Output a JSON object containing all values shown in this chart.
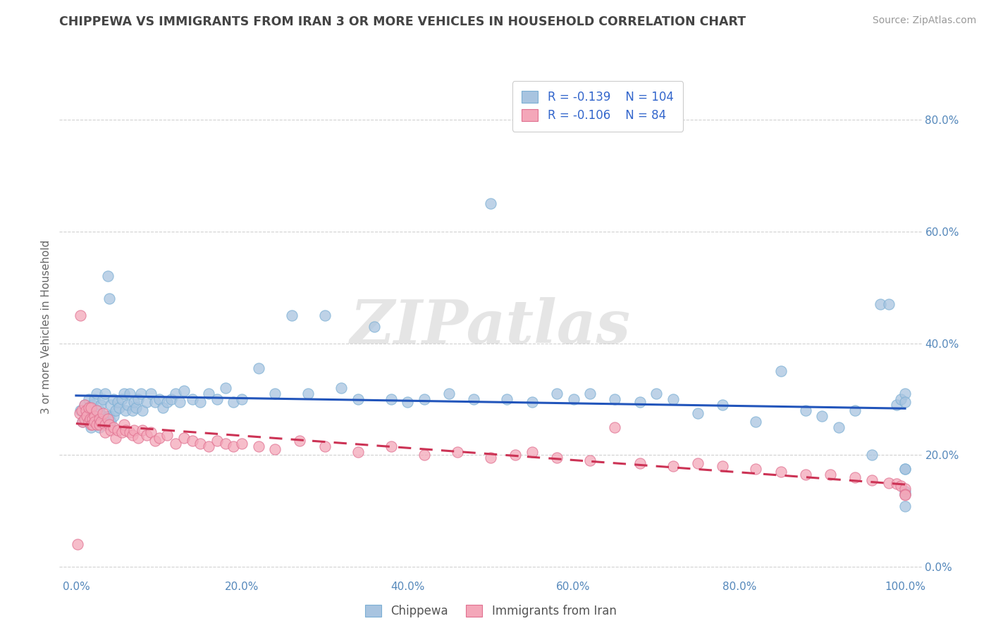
{
  "title": "CHIPPEWA VS IMMIGRANTS FROM IRAN 3 OR MORE VEHICLES IN HOUSEHOLD CORRELATION CHART",
  "source": "Source: ZipAtlas.com",
  "ylabel": "3 or more Vehicles in Household",
  "watermark": "ZIPatlas",
  "legend_blue_R": -0.139,
  "legend_blue_N": 104,
  "legend_pink_R": -0.106,
  "legend_pink_N": 84,
  "xlim": [
    -0.02,
    1.02
  ],
  "ylim": [
    -0.02,
    0.88
  ],
  "x_ticks": [
    0.0,
    0.2,
    0.4,
    0.6,
    0.8,
    1.0
  ],
  "x_tick_labels": [
    "0.0%",
    "20.0%",
    "40.0%",
    "60.0%",
    "80.0%",
    "100.0%"
  ],
  "y_ticks": [
    0.0,
    0.2,
    0.4,
    0.6,
    0.8
  ],
  "y_tick_labels": [
    "0.0%",
    "20.0%",
    "40.0%",
    "60.0%",
    "80.0%"
  ],
  "blue_color": "#a8c4e0",
  "blue_edge_color": "#7bafd4",
  "pink_color": "#f4a7b9",
  "pink_edge_color": "#e07090",
  "trendline_blue": "#2255bb",
  "trendline_pink": "#cc3355",
  "grid_color": "#cccccc",
  "background_color": "#ffffff",
  "title_color": "#444444",
  "source_color": "#999999",
  "legend_text_color": "#3366cc",
  "legend_N_color": "#3366cc",
  "blue_scatter_x": [
    0.005,
    0.008,
    0.01,
    0.012,
    0.015,
    0.015,
    0.018,
    0.018,
    0.02,
    0.02,
    0.022,
    0.022,
    0.025,
    0.025,
    0.028,
    0.028,
    0.03,
    0.03,
    0.032,
    0.032,
    0.035,
    0.035,
    0.038,
    0.038,
    0.04,
    0.04,
    0.042,
    0.042,
    0.045,
    0.045,
    0.048,
    0.05,
    0.052,
    0.055,
    0.058,
    0.06,
    0.062,
    0.065,
    0.068,
    0.07,
    0.072,
    0.075,
    0.078,
    0.08,
    0.085,
    0.09,
    0.095,
    0.1,
    0.105,
    0.11,
    0.115,
    0.12,
    0.125,
    0.13,
    0.14,
    0.15,
    0.16,
    0.17,
    0.18,
    0.19,
    0.2,
    0.22,
    0.24,
    0.26,
    0.28,
    0.3,
    0.32,
    0.34,
    0.36,
    0.38,
    0.4,
    0.42,
    0.45,
    0.48,
    0.5,
    0.52,
    0.55,
    0.58,
    0.6,
    0.62,
    0.65,
    0.68,
    0.7,
    0.72,
    0.75,
    0.78,
    0.82,
    0.85,
    0.88,
    0.9,
    0.92,
    0.94,
    0.96,
    0.97,
    0.98,
    0.99,
    0.995,
    1.0,
    1.0,
    1.0,
    1.0,
    1.0,
    1.0,
    1.0
  ],
  "blue_scatter_y": [
    0.28,
    0.26,
    0.29,
    0.27,
    0.3,
    0.26,
    0.28,
    0.25,
    0.29,
    0.26,
    0.3,
    0.27,
    0.31,
    0.26,
    0.28,
    0.25,
    0.29,
    0.26,
    0.3,
    0.27,
    0.31,
    0.26,
    0.52,
    0.27,
    0.48,
    0.27,
    0.29,
    0.26,
    0.3,
    0.27,
    0.28,
    0.295,
    0.285,
    0.3,
    0.31,
    0.28,
    0.29,
    0.31,
    0.28,
    0.295,
    0.285,
    0.3,
    0.31,
    0.28,
    0.295,
    0.31,
    0.295,
    0.3,
    0.285,
    0.295,
    0.3,
    0.31,
    0.295,
    0.315,
    0.3,
    0.295,
    0.31,
    0.3,
    0.32,
    0.295,
    0.3,
    0.355,
    0.31,
    0.45,
    0.31,
    0.45,
    0.32,
    0.3,
    0.43,
    0.3,
    0.295,
    0.3,
    0.31,
    0.3,
    0.65,
    0.3,
    0.295,
    0.31,
    0.3,
    0.31,
    0.3,
    0.295,
    0.31,
    0.3,
    0.275,
    0.29,
    0.26,
    0.35,
    0.28,
    0.27,
    0.25,
    0.28,
    0.2,
    0.47,
    0.47,
    0.29,
    0.3,
    0.31,
    0.175,
    0.135,
    0.13,
    0.108,
    0.175,
    0.295
  ],
  "pink_scatter_x": [
    0.002,
    0.004,
    0.005,
    0.007,
    0.008,
    0.01,
    0.01,
    0.012,
    0.013,
    0.015,
    0.015,
    0.017,
    0.018,
    0.018,
    0.02,
    0.02,
    0.022,
    0.022,
    0.025,
    0.025,
    0.028,
    0.028,
    0.03,
    0.032,
    0.035,
    0.035,
    0.038,
    0.04,
    0.042,
    0.045,
    0.048,
    0.05,
    0.055,
    0.058,
    0.06,
    0.065,
    0.068,
    0.07,
    0.075,
    0.08,
    0.085,
    0.09,
    0.095,
    0.1,
    0.11,
    0.12,
    0.13,
    0.14,
    0.15,
    0.16,
    0.17,
    0.18,
    0.19,
    0.2,
    0.22,
    0.24,
    0.27,
    0.3,
    0.34,
    0.38,
    0.42,
    0.46,
    0.5,
    0.53,
    0.55,
    0.58,
    0.62,
    0.65,
    0.68,
    0.72,
    0.75,
    0.78,
    0.82,
    0.85,
    0.88,
    0.91,
    0.94,
    0.96,
    0.98,
    0.99,
    0.995,
    1.0,
    1.0,
    1.0
  ],
  "pink_scatter_y": [
    0.04,
    0.275,
    0.45,
    0.28,
    0.26,
    0.29,
    0.265,
    0.28,
    0.27,
    0.285,
    0.26,
    0.265,
    0.255,
    0.285,
    0.265,
    0.255,
    0.27,
    0.26,
    0.28,
    0.255,
    0.265,
    0.255,
    0.26,
    0.275,
    0.255,
    0.24,
    0.265,
    0.255,
    0.245,
    0.25,
    0.23,
    0.245,
    0.24,
    0.255,
    0.245,
    0.24,
    0.235,
    0.245,
    0.23,
    0.245,
    0.235,
    0.24,
    0.225,
    0.23,
    0.235,
    0.22,
    0.23,
    0.225,
    0.22,
    0.215,
    0.225,
    0.22,
    0.215,
    0.22,
    0.215,
    0.21,
    0.225,
    0.215,
    0.205,
    0.215,
    0.2,
    0.205,
    0.195,
    0.2,
    0.205,
    0.195,
    0.19,
    0.25,
    0.185,
    0.18,
    0.185,
    0.18,
    0.175,
    0.17,
    0.165,
    0.165,
    0.16,
    0.155,
    0.15,
    0.148,
    0.145,
    0.14,
    0.13,
    0.128
  ]
}
